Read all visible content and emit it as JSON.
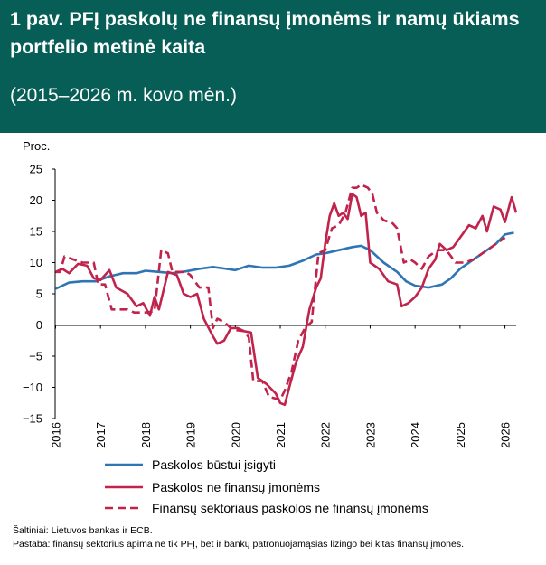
{
  "header": {
    "title": "1 pav. PFĮ paskolų ne finansų įmonėms ir namų ūkiams portfelio metinė kaita",
    "subtitle": "(2015–2026 m. kovo mėn.)",
    "background": "#075e56"
  },
  "chart_data": {
    "type": "line",
    "ylabel": "Proc.",
    "ylim": [
      -15,
      25
    ],
    "yticks": [
      25,
      20,
      15,
      10,
      5,
      0,
      -5,
      -10,
      -15
    ],
    "ytick_labels": [
      "25",
      "20",
      "15",
      "10",
      "5",
      "0",
      "−5",
      "−10",
      "−15"
    ],
    "xlim": [
      2015.99,
      2026.25
    ],
    "xticks": [
      "2016",
      "2017",
      "2018",
      "2019",
      "2020",
      "2021",
      "2022",
      "2023",
      "2024",
      "2025",
      "2026"
    ],
    "grid": false,
    "legend_position": "bottom",
    "series": [
      {
        "name": "Paskolos būstui įsigyti",
        "color": "#2e75b6",
        "style": "solid",
        "points": [
          [
            2016.0,
            5.8
          ],
          [
            2016.3,
            6.8
          ],
          [
            2016.6,
            7.0
          ],
          [
            2016.9,
            7.0
          ],
          [
            2017.2,
            7.8
          ],
          [
            2017.5,
            8.3
          ],
          [
            2017.8,
            8.3
          ],
          [
            2018.0,
            8.7
          ],
          [
            2018.3,
            8.5
          ],
          [
            2018.6,
            8.3
          ],
          [
            2018.9,
            8.6
          ],
          [
            2019.2,
            9.0
          ],
          [
            2019.5,
            9.3
          ],
          [
            2019.8,
            9.0
          ],
          [
            2020.0,
            8.8
          ],
          [
            2020.3,
            9.5
          ],
          [
            2020.6,
            9.2
          ],
          [
            2020.9,
            9.2
          ],
          [
            2021.2,
            9.5
          ],
          [
            2021.5,
            10.3
          ],
          [
            2021.8,
            11.3
          ],
          [
            2022.0,
            11.5
          ],
          [
            2022.3,
            12.0
          ],
          [
            2022.6,
            12.5
          ],
          [
            2022.8,
            12.7
          ],
          [
            2023.0,
            12.0
          ],
          [
            2023.3,
            10.0
          ],
          [
            2023.6,
            8.5
          ],
          [
            2023.8,
            7.0
          ],
          [
            2024.0,
            6.3
          ],
          [
            2024.3,
            6.0
          ],
          [
            2024.6,
            6.5
          ],
          [
            2024.8,
            7.5
          ],
          [
            2025.0,
            9.0
          ],
          [
            2025.3,
            10.5
          ],
          [
            2025.6,
            12.0
          ],
          [
            2025.8,
            13.0
          ],
          [
            2026.0,
            14.5
          ],
          [
            2026.2,
            14.8
          ]
        ]
      },
      {
        "name": "Paskolos ne finansų įmonėms",
        "color": "#c0234b",
        "style": "solid",
        "points": [
          [
            2016.0,
            8.5
          ],
          [
            2016.15,
            9.0
          ],
          [
            2016.3,
            8.3
          ],
          [
            2016.5,
            9.8
          ],
          [
            2016.7,
            9.5
          ],
          [
            2016.85,
            7.5
          ],
          [
            2017.0,
            7.2
          ],
          [
            2017.2,
            8.8
          ],
          [
            2017.35,
            6.0
          ],
          [
            2017.6,
            5.0
          ],
          [
            2017.8,
            3.0
          ],
          [
            2017.95,
            3.5
          ],
          [
            2018.1,
            1.5
          ],
          [
            2018.2,
            4.5
          ],
          [
            2018.3,
            2.5
          ],
          [
            2018.5,
            8.5
          ],
          [
            2018.7,
            8.0
          ],
          [
            2018.85,
            5.0
          ],
          [
            2019.0,
            4.5
          ],
          [
            2019.15,
            5.0
          ],
          [
            2019.3,
            1.0
          ],
          [
            2019.5,
            -1.8
          ],
          [
            2019.6,
            -3.0
          ],
          [
            2019.75,
            -2.5
          ],
          [
            2019.9,
            -0.5
          ],
          [
            2020.05,
            -0.5
          ],
          [
            2020.2,
            -1.0
          ],
          [
            2020.35,
            -1.2
          ],
          [
            2020.5,
            -8.5
          ],
          [
            2020.7,
            -9.5
          ],
          [
            2020.9,
            -11.0
          ],
          [
            2021.0,
            -12.5
          ],
          [
            2021.1,
            -12.8
          ],
          [
            2021.2,
            -10.0
          ],
          [
            2021.35,
            -6.0
          ],
          [
            2021.5,
            -3.5
          ],
          [
            2021.65,
            2.5
          ],
          [
            2021.8,
            6.0
          ],
          [
            2021.9,
            7.5
          ],
          [
            2022.0,
            13.0
          ],
          [
            2022.1,
            17.5
          ],
          [
            2022.2,
            19.5
          ],
          [
            2022.3,
            17.5
          ],
          [
            2022.4,
            18.0
          ],
          [
            2022.5,
            17.0
          ],
          [
            2022.6,
            21.0
          ],
          [
            2022.7,
            20.5
          ],
          [
            2022.8,
            17.5
          ],
          [
            2022.9,
            18.0
          ],
          [
            2023.0,
            10.0
          ],
          [
            2023.2,
            9.0
          ],
          [
            2023.4,
            7.0
          ],
          [
            2023.6,
            6.5
          ],
          [
            2023.7,
            3.0
          ],
          [
            2023.85,
            3.5
          ],
          [
            2024.0,
            4.5
          ],
          [
            2024.15,
            6.0
          ],
          [
            2024.3,
            9.0
          ],
          [
            2024.45,
            10.5
          ],
          [
            2024.55,
            13.0
          ],
          [
            2024.7,
            12.0
          ],
          [
            2024.85,
            12.5
          ],
          [
            2025.0,
            14.0
          ],
          [
            2025.2,
            16.0
          ],
          [
            2025.35,
            15.5
          ],
          [
            2025.5,
            17.5
          ],
          [
            2025.6,
            15.0
          ],
          [
            2025.75,
            19.0
          ],
          [
            2025.9,
            18.5
          ],
          [
            2026.0,
            16.5
          ],
          [
            2026.15,
            20.5
          ],
          [
            2026.25,
            18.0
          ]
        ]
      },
      {
        "name": "Finansų sektoriaus paskolos ne finansų įmonėms",
        "color": "#c0234b",
        "style": "dashed",
        "points": [
          [
            2016.0,
            8.5
          ],
          [
            2016.1,
            8.5
          ],
          [
            2016.2,
            11.0
          ],
          [
            2016.4,
            10.5
          ],
          [
            2016.6,
            10.0
          ],
          [
            2016.85,
            10.0
          ],
          [
            2016.95,
            6.5
          ],
          [
            2017.1,
            6.5
          ],
          [
            2017.25,
            2.5
          ],
          [
            2017.6,
            2.5
          ],
          [
            2017.75,
            2.0
          ],
          [
            2018.0,
            2.0
          ],
          [
            2018.2,
            2.2
          ],
          [
            2018.35,
            12.0
          ],
          [
            2018.5,
            11.5
          ],
          [
            2018.6,
            8.5
          ],
          [
            2018.9,
            8.5
          ],
          [
            2019.0,
            8.0
          ],
          [
            2019.2,
            6.0
          ],
          [
            2019.4,
            6.0
          ],
          [
            2019.5,
            -0.5
          ],
          [
            2019.6,
            1.0
          ],
          [
            2019.75,
            0.5
          ],
          [
            2019.9,
            -0.5
          ],
          [
            2020.0,
            -0.8
          ],
          [
            2020.2,
            -1.0
          ],
          [
            2020.3,
            -2.0
          ],
          [
            2020.4,
            -9.0
          ],
          [
            2020.6,
            -9.0
          ],
          [
            2020.75,
            -11.5
          ],
          [
            2021.0,
            -12.0
          ],
          [
            2021.1,
            -10.5
          ],
          [
            2021.25,
            -7.5
          ],
          [
            2021.4,
            -2.5
          ],
          [
            2021.55,
            -0.5
          ],
          [
            2021.7,
            0.5
          ],
          [
            2021.85,
            11.5
          ],
          [
            2022.0,
            12.0
          ],
          [
            2022.15,
            15.5
          ],
          [
            2022.3,
            16.0
          ],
          [
            2022.45,
            18.0
          ],
          [
            2022.6,
            22.0
          ],
          [
            2022.7,
            22.0
          ],
          [
            2022.8,
            22.5
          ],
          [
            2022.95,
            22.0
          ],
          [
            2023.05,
            21.0
          ],
          [
            2023.15,
            18.0
          ],
          [
            2023.3,
            16.8
          ],
          [
            2023.5,
            16.3
          ],
          [
            2023.6,
            15.5
          ],
          [
            2023.75,
            10.0
          ],
          [
            2023.9,
            10.5
          ],
          [
            2024.0,
            10.0
          ],
          [
            2024.15,
            9.0
          ],
          [
            2024.3,
            11.0
          ],
          [
            2024.5,
            12.0
          ],
          [
            2024.7,
            12.0
          ],
          [
            2024.9,
            10.0
          ],
          [
            2025.1,
            10.0
          ],
          [
            2025.3,
            10.5
          ],
          [
            2025.5,
            11.5
          ],
          [
            2025.7,
            12.5
          ],
          [
            2025.9,
            13.5
          ],
          [
            2026.0,
            14.0
          ]
        ]
      }
    ]
  },
  "notes": {
    "sources": "Šaltiniai: Lietuvos bankas ir ECB.",
    "remark": "Pastaba: finansų sektorius apima ne tik PFĮ, bet ir bankų patronuojamąsias lizingo bei kitas finansų įmones."
  }
}
